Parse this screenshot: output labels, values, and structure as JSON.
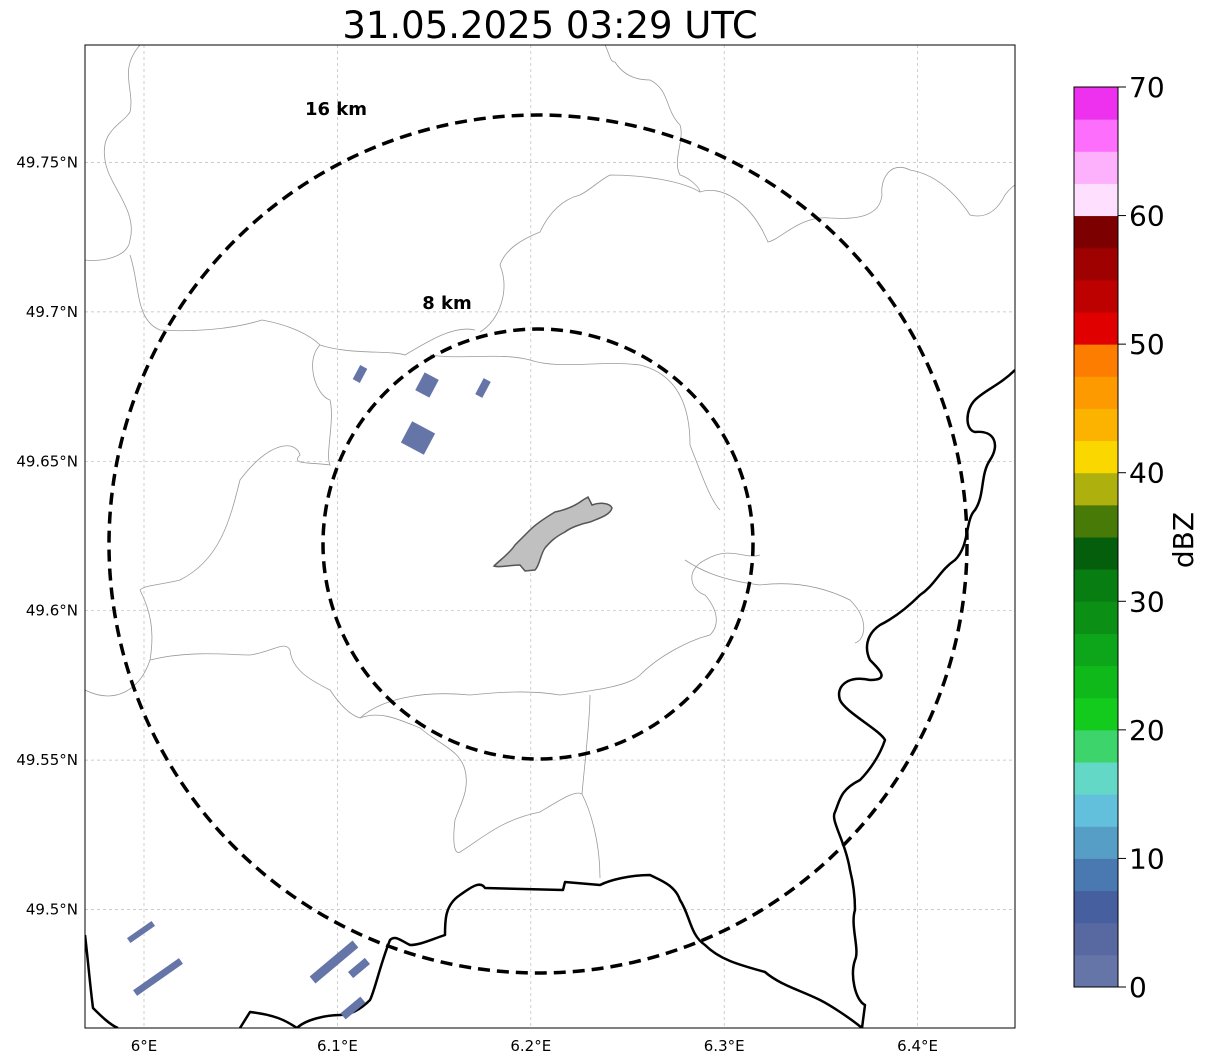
{
  "title": "31.05.2025 03:29 UTC",
  "map": {
    "lat_ticks": [
      {
        "value": 49.75,
        "label": "49.75°N"
      },
      {
        "value": 49.7,
        "label": "49.7°N"
      },
      {
        "value": 49.65,
        "label": "49.65°N"
      },
      {
        "value": 49.6,
        "label": "49.6°N"
      },
      {
        "value": 49.55,
        "label": "49.55°N"
      },
      {
        "value": 49.5,
        "label": "49.5°N"
      }
    ],
    "lon_ticks": [
      {
        "value": 6.0,
        "label": "6°E"
      },
      {
        "value": 6.1,
        "label": "6.1°E"
      },
      {
        "value": 6.2,
        "label": "6.2°E"
      },
      {
        "value": 6.3,
        "label": "6.3°E"
      },
      {
        "value": 6.4,
        "label": "6.4°E"
      }
    ],
    "range_rings": [
      {
        "label": "8 km"
      },
      {
        "label": "16 km"
      }
    ],
    "gridlines": true
  },
  "colorbar": {
    "label": "dBZ",
    "ticks": [
      "0",
      "10",
      "20",
      "30",
      "40",
      "50",
      "60",
      "70"
    ],
    "colors": [
      "#6675a8",
      "#5869a1",
      "#465f9f",
      "#4a79b1",
      "#569ec6",
      "#63c0dc",
      "#63d8c6",
      "#3dd46c",
      "#13cb1d",
      "#10b91a",
      "#0da61a",
      "#0b8f15",
      "#087e12",
      "#055e0c",
      "#487a08",
      "#adb00d",
      "#fbd700",
      "#fcb300",
      "#fd9a00",
      "#fd7d00",
      "#e00000",
      "#bd0000",
      "#9f0000",
      "#7c0000",
      "#fee0fe",
      "#fdb1fd",
      "#fd6efd",
      "#ee31ee"
    ]
  }
}
